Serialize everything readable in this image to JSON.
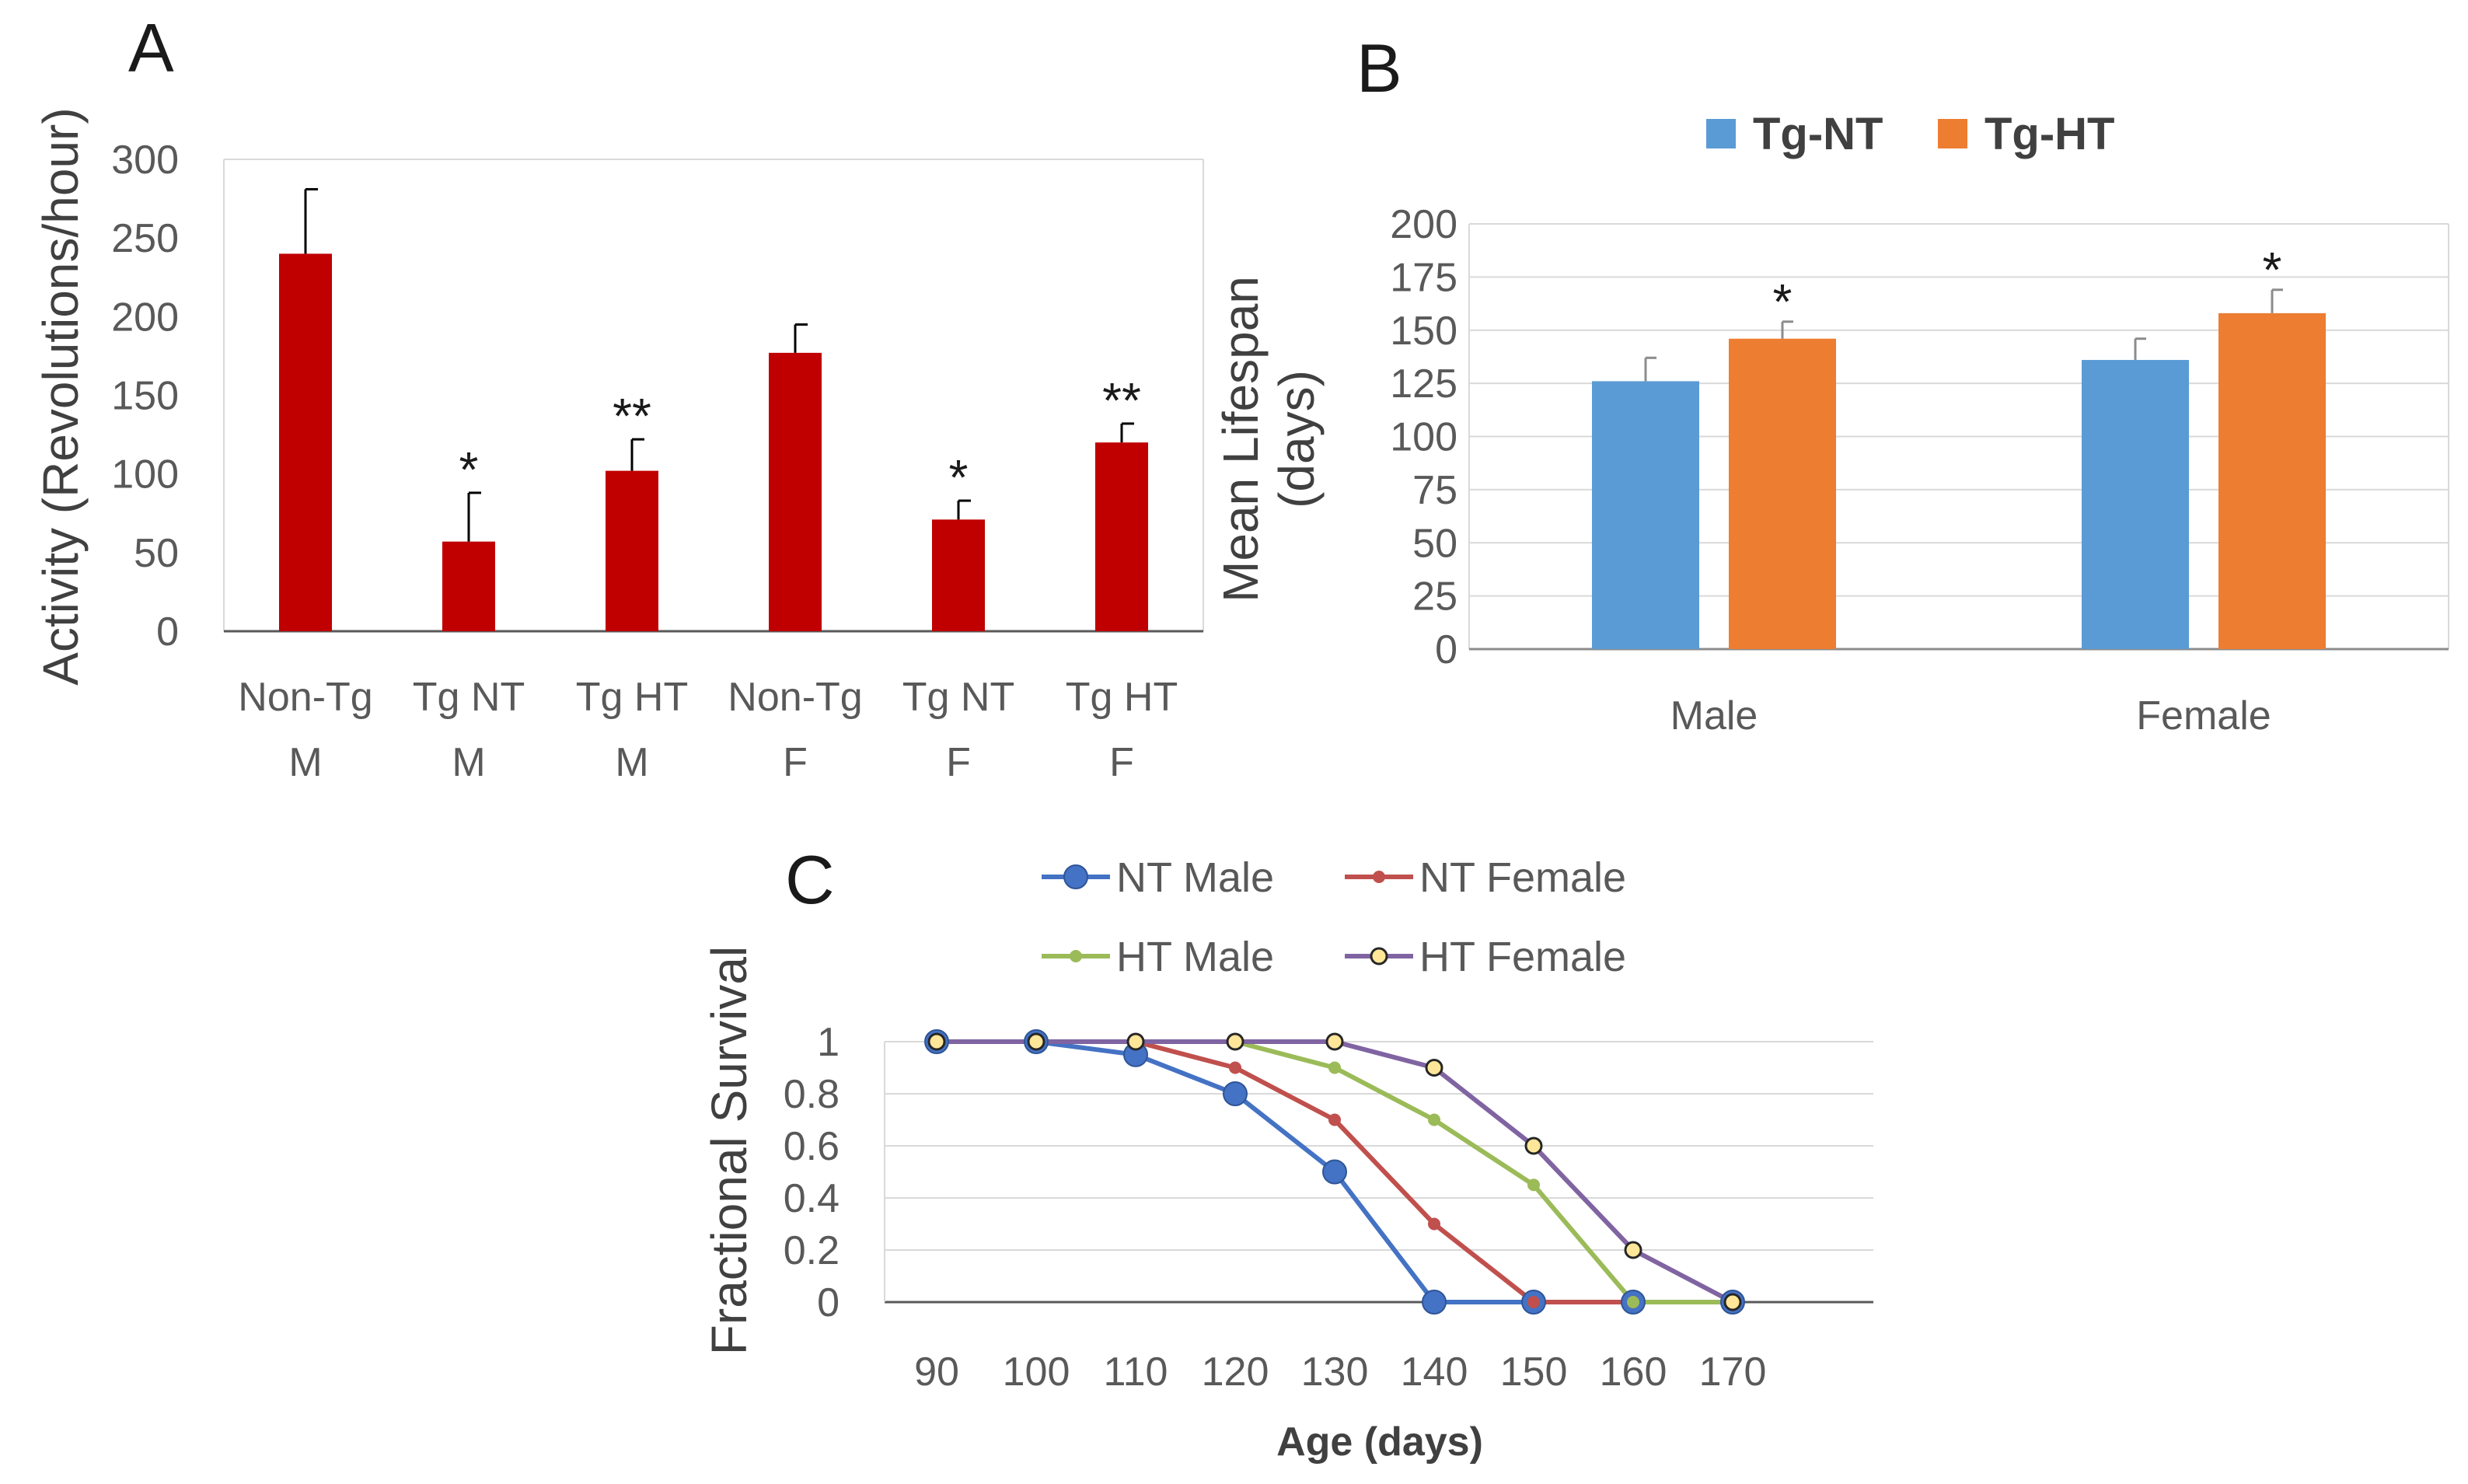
{
  "chart_data": [
    {
      "panel": "A",
      "type": "bar",
      "ylabel": "Activity (Revolutions/hour)",
      "ylim": [
        0,
        300
      ],
      "yticks": [
        0,
        50,
        100,
        150,
        200,
        250,
        300
      ],
      "categories": [
        {
          "line1": "Non-Tg",
          "line2": "M"
        },
        {
          "line1": "Tg NT",
          "line2": "M"
        },
        {
          "line1": "Tg HT",
          "line2": "M"
        },
        {
          "line1": "Non-Tg",
          "line2": "F"
        },
        {
          "line1": "Tg NT",
          "line2": "F"
        },
        {
          "line1": "Tg HT",
          "line2": "F"
        }
      ],
      "values": [
        240,
        57,
        102,
        177,
        71,
        120
      ],
      "errors": [
        41,
        31,
        20,
        18,
        12,
        12
      ],
      "significance": [
        "",
        "*",
        "**",
        "",
        "*",
        "**"
      ],
      "color": "#c00000"
    },
    {
      "panel": "B",
      "type": "bar",
      "ylabel_line1": "Mean Lifespan",
      "ylabel_line2": "(days)",
      "ylim": [
        0,
        200
      ],
      "yticks": [
        0,
        25,
        50,
        75,
        100,
        125,
        150,
        175,
        200
      ],
      "categories": [
        "Male",
        "Female"
      ],
      "series": [
        {
          "name": "Tg-NT",
          "values": [
            126,
            136
          ],
          "errors": [
            11,
            10
          ],
          "significance": [
            "",
            ""
          ],
          "color": "#5b9bd5"
        },
        {
          "name": "Tg-HT",
          "values": [
            146,
            158
          ],
          "errors": [
            8,
            11
          ],
          "significance": [
            "*",
            "*"
          ],
          "color": "#ed7d31"
        }
      ]
    },
    {
      "panel": "C",
      "type": "line",
      "ylabel": "Fractional Survival",
      "xlabel": "Age (days)",
      "ylim": [
        0,
        1
      ],
      "yticks": [
        0,
        0.2,
        0.4,
        0.6,
        0.8,
        1
      ],
      "ytick_labels": [
        "0",
        "0.2",
        "0.4",
        "0.6",
        "0.8",
        "1"
      ],
      "x": [
        90,
        100,
        110,
        120,
        130,
        140,
        150,
        160,
        170
      ],
      "series": [
        {
          "name": "NT Male",
          "color": "#4472c4",
          "marker": "circle-large",
          "values": [
            1,
            1,
            0.95,
            0.8,
            0.5,
            0,
            0,
            0,
            0
          ]
        },
        {
          "name": "NT Female",
          "color": "#c0504d",
          "marker": "circle-small",
          "values": [
            1,
            1,
            1,
            0.9,
            0.7,
            0.3,
            0,
            0,
            0
          ]
        },
        {
          "name": "HT Male",
          "color": "#9bbb59",
          "marker": "circle-small",
          "values": [
            1,
            1,
            1,
            1,
            0.9,
            0.7,
            0.45,
            0,
            0
          ]
        },
        {
          "name": "HT Female",
          "color": "#8064a2",
          "marker": "circle-yellow",
          "values": [
            1,
            1,
            1,
            1,
            1,
            0.9,
            0.6,
            0.2,
            0
          ]
        }
      ]
    }
  ]
}
